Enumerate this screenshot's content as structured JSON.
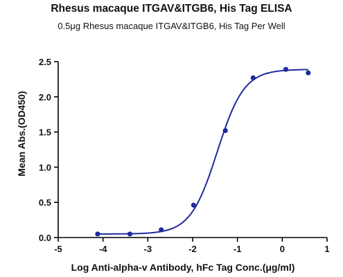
{
  "chart_data": {
    "type": "scatter",
    "title": "Rhesus macaque ITGAV&ITGB6, His Tag ELISA",
    "subtitle": "0.5μg Rhesus macaque ITGAV&ITGB6, His Tag Per Well",
    "xlabel": "Log Anti-alpha-v Antibody, hFc Tag Conc.(μg/ml)",
    "ylabel": "Mean Abs.(OD450)",
    "xlim": [
      -5,
      1
    ],
    "ylim": [
      0,
      2.5
    ],
    "xticks": [
      "-5",
      "-4",
      "-3",
      "-2",
      "-1",
      "0",
      "1"
    ],
    "yticks": [
      "0.0",
      "0.5",
      "1.0",
      "1.5",
      "2.0",
      "2.5"
    ],
    "grid": false,
    "series": [
      {
        "x": [
          -4.12,
          -3.4,
          -2.7,
          -1.98,
          -1.27,
          -0.65,
          0.08,
          0.58
        ],
        "y": [
          0.05,
          0.05,
          0.11,
          0.46,
          1.52,
          2.27,
          2.39,
          2.34
        ],
        "color": "#1f2a9c",
        "fit": {
          "bottom": 0.05,
          "top": 2.39,
          "logEC50": -1.45,
          "hill": 1.45,
          "x_range": [
            -4.12,
            0.58
          ]
        }
      }
    ]
  }
}
